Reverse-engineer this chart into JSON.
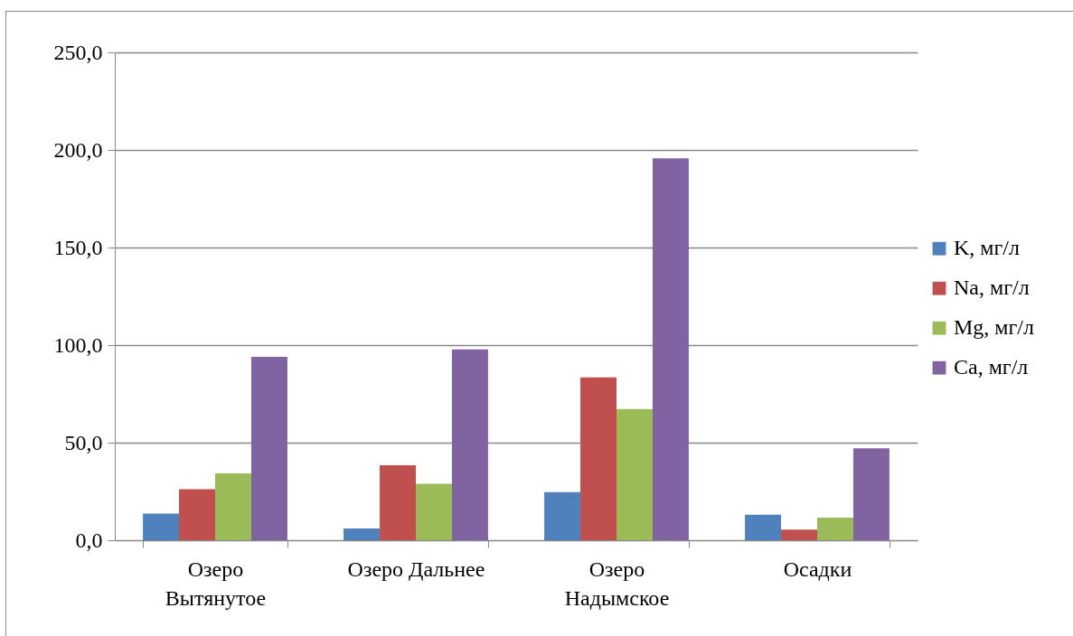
{
  "chart_data": {
    "type": "bar",
    "categories": [
      "Озеро\nВытянутое",
      "Озеро Дальнее",
      "Озеро\nНадымское",
      "Осадки"
    ],
    "series": [
      {
        "name": "K, мг/л",
        "color": "#4f81bd",
        "values": [
          13.6,
          6.0,
          24.7,
          13.1
        ]
      },
      {
        "name": "Na, мг/л",
        "color": "#c0504d",
        "values": [
          26.1,
          38.4,
          83.5,
          5.4
        ]
      },
      {
        "name": "Mg, мг/л",
        "color": "#9bbb59",
        "values": [
          34.3,
          28.9,
          67.3,
          11.6
        ]
      },
      {
        "name": "Ca, мг/л",
        "color": "#8064a2",
        "values": [
          94.0,
          97.8,
          195.7,
          47.1
        ]
      }
    ],
    "ylim": [
      0,
      250
    ],
    "yticks": [
      {
        "value": 0,
        "label": "0,0"
      },
      {
        "value": 50,
        "label": "50,0"
      },
      {
        "value": 100,
        "label": "100,0"
      },
      {
        "value": 150,
        "label": "150,0"
      },
      {
        "value": 200,
        "label": "200,0"
      },
      {
        "value": 250,
        "label": "250,0"
      }
    ],
    "grid": "y",
    "legend": "right"
  }
}
